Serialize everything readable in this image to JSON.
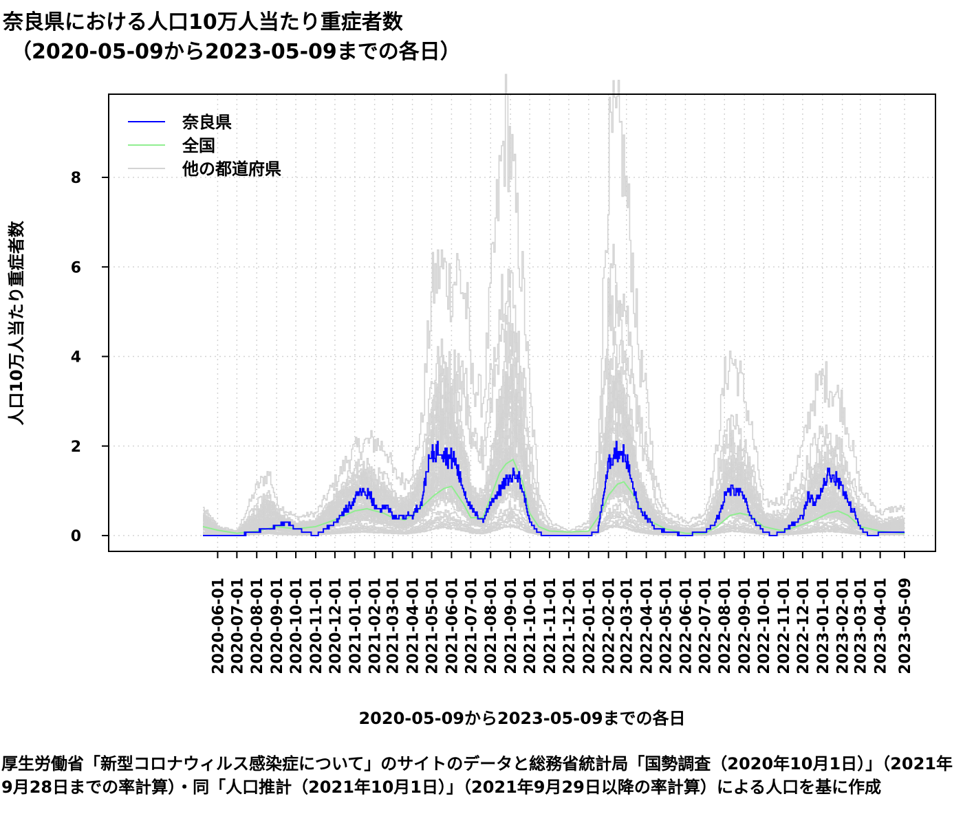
{
  "title": {
    "line1": "奈良県における人口10万人当たり重症者数",
    "line2": "（2020-05-09から2023-05-09までの各日）"
  },
  "source_note": "厚生労働省「新型コロナウィルス感染症について」のサイトのデータと総務省統計局「国勢調査（2020年10月1日）」（2021年9月28日までの率計算）・同「人口推計（2021年10月1日）」（2021年9月29日以降の率計算）による人口を基に作成",
  "chart_data": {
    "type": "line",
    "title": "奈良県における人口10万人当たり重症者数（2020-05-09から2023-05-09までの各日）",
    "xlabel": "2020-05-09から2023-05-09までの各日",
    "ylabel": "人口10万人当たり重症者数",
    "xlim": [
      "2020-05-09",
      "2023-05-09"
    ],
    "ylim": [
      0,
      9.5
    ],
    "yticks": [
      0,
      2,
      4,
      6,
      8
    ],
    "xticks": [
      "2020-06-01",
      "2020-07-01",
      "2020-08-01",
      "2020-09-01",
      "2020-10-01",
      "2020-11-01",
      "2020-12-01",
      "2021-01-01",
      "2021-02-01",
      "2021-03-01",
      "2021-04-01",
      "2021-05-01",
      "2021-06-01",
      "2021-07-01",
      "2021-08-01",
      "2021-09-01",
      "2021-10-01",
      "2021-11-01",
      "2021-12-01",
      "2022-01-01",
      "2022-02-01",
      "2022-03-01",
      "2022-04-01",
      "2022-05-01",
      "2022-06-01",
      "2022-07-01",
      "2022-08-01",
      "2022-09-01",
      "2022-10-01",
      "2022-11-01",
      "2022-12-01",
      "2023-01-01",
      "2023-02-01",
      "2023-03-01",
      "2023-04-01",
      "2023-05-09"
    ],
    "grid": true,
    "legend_position": "top-left",
    "series": [
      {
        "name": "奈良県",
        "color": "#0000ff",
        "x": [
          "2020-05-09",
          "2020-06-01",
          "2020-07-01",
          "2020-08-01",
          "2020-09-01",
          "2020-09-15",
          "2020-10-01",
          "2020-11-01",
          "2020-12-01",
          "2020-12-20",
          "2021-01-01",
          "2021-01-10",
          "2021-01-25",
          "2021-02-05",
          "2021-02-20",
          "2021-03-01",
          "2021-03-20",
          "2021-04-01",
          "2021-04-15",
          "2021-04-25",
          "2021-05-05",
          "2021-05-15",
          "2021-05-25",
          "2021-06-05",
          "2021-06-20",
          "2021-07-01",
          "2021-07-10",
          "2021-07-20",
          "2021-08-01",
          "2021-08-15",
          "2021-08-25",
          "2021-09-01",
          "2021-09-10",
          "2021-09-20",
          "2021-10-01",
          "2021-10-15",
          "2021-11-01",
          "2021-12-01",
          "2022-01-01",
          "2022-01-15",
          "2022-01-25",
          "2022-02-01",
          "2022-02-10",
          "2022-02-20",
          "2022-03-01",
          "2022-03-10",
          "2022-03-20",
          "2022-04-01",
          "2022-04-15",
          "2022-05-01",
          "2022-06-01",
          "2022-07-01",
          "2022-07-15",
          "2022-07-25",
          "2022-08-01",
          "2022-08-10",
          "2022-08-20",
          "2022-09-01",
          "2022-09-10",
          "2022-09-20",
          "2022-10-01",
          "2022-10-15",
          "2022-11-01",
          "2022-11-20",
          "2022-12-01",
          "2022-12-10",
          "2022-12-20",
          "2023-01-01",
          "2023-01-10",
          "2023-01-20",
          "2023-02-01",
          "2023-02-10",
          "2023-02-20",
          "2023-03-01",
          "2023-03-15",
          "2023-04-01",
          "2023-04-20",
          "2023-05-01",
          "2023-05-09"
        ],
        "values": [
          0.0,
          0.0,
          0.0,
          0.1,
          0.2,
          0.3,
          0.15,
          0.0,
          0.3,
          0.6,
          0.8,
          1.0,
          0.9,
          0.55,
          0.7,
          0.4,
          0.45,
          0.45,
          0.75,
          1.6,
          1.85,
          2.0,
          1.75,
          1.7,
          1.0,
          0.6,
          0.45,
          0.35,
          0.75,
          1.0,
          1.2,
          1.3,
          1.45,
          1.0,
          0.3,
          0.05,
          0.0,
          0.0,
          0.0,
          0.1,
          1.0,
          1.6,
          1.85,
          1.9,
          1.7,
          1.1,
          0.6,
          0.4,
          0.15,
          0.1,
          0.0,
          0.1,
          0.25,
          0.5,
          0.9,
          1.0,
          1.05,
          0.8,
          0.45,
          0.25,
          0.1,
          0.0,
          0.1,
          0.3,
          0.45,
          0.9,
          0.7,
          1.1,
          1.4,
          1.3,
          1.1,
          0.7,
          0.5,
          0.15,
          0.0,
          0.05,
          0.1,
          0.1,
          0.05
        ]
      },
      {
        "name": "全国",
        "color": "#90ee90",
        "x": [
          "2020-05-09",
          "2020-06-01",
          "2020-07-01",
          "2020-08-01",
          "2020-09-01",
          "2020-10-01",
          "2020-11-01",
          "2020-12-01",
          "2021-01-01",
          "2021-01-20",
          "2021-02-15",
          "2021-03-01",
          "2021-03-20",
          "2021-04-01",
          "2021-04-20",
          "2021-05-05",
          "2021-05-20",
          "2021-06-01",
          "2021-06-20",
          "2021-07-01",
          "2021-07-20",
          "2021-08-01",
          "2021-08-15",
          "2021-08-25",
          "2021-09-05",
          "2021-09-20",
          "2021-10-01",
          "2021-10-15",
          "2021-11-01",
          "2021-12-01",
          "2022-01-01",
          "2022-01-20",
          "2022-02-01",
          "2022-02-15",
          "2022-02-25",
          "2022-03-10",
          "2022-03-25",
          "2022-04-10",
          "2022-05-01",
          "2022-06-01",
          "2022-07-01",
          "2022-07-20",
          "2022-08-10",
          "2022-08-25",
          "2022-09-10",
          "2022-10-01",
          "2022-11-01",
          "2022-12-01",
          "2022-12-20",
          "2023-01-10",
          "2023-01-25",
          "2023-02-10",
          "2023-03-01",
          "2023-04-01",
          "2023-05-09"
        ],
        "values": [
          0.2,
          0.12,
          0.05,
          0.1,
          0.2,
          0.15,
          0.2,
          0.35,
          0.55,
          0.6,
          0.5,
          0.4,
          0.35,
          0.45,
          0.7,
          0.9,
          1.05,
          1.1,
          0.7,
          0.4,
          0.4,
          0.85,
          1.4,
          1.6,
          1.7,
          1.2,
          0.5,
          0.2,
          0.1,
          0.08,
          0.1,
          0.5,
          0.9,
          1.15,
          1.2,
          0.95,
          0.55,
          0.3,
          0.15,
          0.05,
          0.05,
          0.2,
          0.45,
          0.5,
          0.45,
          0.2,
          0.1,
          0.25,
          0.35,
          0.5,
          0.55,
          0.45,
          0.2,
          0.1,
          0.05
        ]
      },
      {
        "name": "他の都道府県",
        "color": "#d3d3d3",
        "note_series": "46",
        "x": [
          "2020-05-09",
          "2020-06-01",
          "2020-07-01",
          "2020-08-01",
          "2020-08-20",
          "2020-09-01",
          "2020-10-01",
          "2020-11-01",
          "2020-12-01",
          "2020-12-20",
          "2021-01-01",
          "2021-01-15",
          "2021-02-01",
          "2021-02-20",
          "2021-03-01",
          "2021-03-20",
          "2021-04-01",
          "2021-04-15",
          "2021-05-01",
          "2021-05-15",
          "2021-06-01",
          "2021-06-10",
          "2021-06-25",
          "2021-07-01",
          "2021-07-20",
          "2021-08-01",
          "2021-08-15",
          "2021-08-25",
          "2021-09-01",
          "2021-09-10",
          "2021-09-20",
          "2021-10-01",
          "2021-10-15",
          "2021-11-01",
          "2021-12-01",
          "2022-01-01",
          "2022-01-15",
          "2022-01-25",
          "2022-02-01",
          "2022-02-10",
          "2022-02-20",
          "2022-03-01",
          "2022-03-10",
          "2022-03-20",
          "2022-04-01",
          "2022-04-15",
          "2022-05-01",
          "2022-06-01",
          "2022-07-01",
          "2022-07-15",
          "2022-08-01",
          "2022-08-10",
          "2022-08-25",
          "2022-09-10",
          "2022-10-01",
          "2022-11-01",
          "2022-12-01",
          "2022-12-15",
          "2023-01-01",
          "2023-01-15",
          "2023-02-01",
          "2023-02-15",
          "2023-03-01",
          "2023-04-01",
          "2023-04-20",
          "2023-05-09"
        ],
        "max_values": [
          0.6,
          0.2,
          0.1,
          1.1,
          1.4,
          0.7,
          0.4,
          0.5,
          1.2,
          1.7,
          1.9,
          2.05,
          2.1,
          1.9,
          1.4,
          1.2,
          1.5,
          2.5,
          5.5,
          6.0,
          5.5,
          6.0,
          5.0,
          3.5,
          3.0,
          5.5,
          8.0,
          9.3,
          8.5,
          7.0,
          5.5,
          3.0,
          1.0,
          0.3,
          0.1,
          0.3,
          2.0,
          6.0,
          8.5,
          9.0,
          8.8,
          7.5,
          6.0,
          4.0,
          3.0,
          1.2,
          0.6,
          0.3,
          0.5,
          1.5,
          3.5,
          4.0,
          3.5,
          2.5,
          0.7,
          0.8,
          2.0,
          3.0,
          3.5,
          3.3,
          2.9,
          2.0,
          1.0,
          0.5,
          0.6,
          0.6
        ],
        "typical_values": [
          0.3,
          0.1,
          0.05,
          0.3,
          0.5,
          0.3,
          0.15,
          0.2,
          0.5,
          0.7,
          0.8,
          0.9,
          0.7,
          0.6,
          0.5,
          0.4,
          0.6,
          0.9,
          1.6,
          2.0,
          1.8,
          1.5,
          1.0,
          0.6,
          0.5,
          1.0,
          1.8,
          2.3,
          2.5,
          2.0,
          1.4,
          0.7,
          0.2,
          0.08,
          0.03,
          0.05,
          0.6,
          1.4,
          2.0,
          2.3,
          2.2,
          1.8,
          1.3,
          0.8,
          0.5,
          0.3,
          0.15,
          0.08,
          0.1,
          0.4,
          0.9,
          1.1,
          1.0,
          0.7,
          0.25,
          0.2,
          0.5,
          0.8,
          1.0,
          1.0,
          0.8,
          0.5,
          0.3,
          0.15,
          0.2,
          0.2
        ]
      }
    ]
  }
}
